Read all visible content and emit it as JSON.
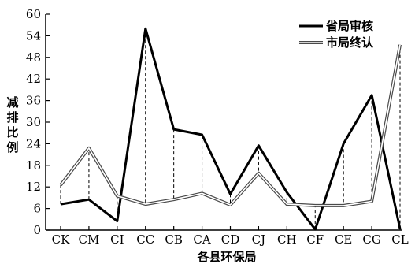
{
  "chart_data": {
    "type": "line",
    "title": "",
    "xlabel": "各县环保局",
    "ylabel": "减排比例",
    "categories": [
      "CK",
      "CM",
      "CI",
      "CC",
      "CB",
      "CA",
      "CD",
      "CJ",
      "CH",
      "CF",
      "CE",
      "CG",
      "CL"
    ],
    "yticks": [
      0,
      6,
      12,
      18,
      24,
      30,
      36,
      42,
      48,
      54,
      60
    ],
    "ylim": [
      0,
      60
    ],
    "legend_position": "top-right",
    "grid": false,
    "series": [
      {
        "name": "省局审核",
        "style": "thick-black",
        "color": "#000000",
        "values": [
          7.2,
          8.5,
          2.5,
          56.0,
          28.0,
          26.5,
          10.0,
          23.5,
          10.5,
          0.2,
          24.0,
          37.5,
          0.3
        ]
      },
      {
        "name": "市局终认",
        "style": "double-line",
        "color": "#555555",
        "values": [
          12.5,
          22.8,
          9.5,
          7.2,
          8.5,
          10.2,
          7.0,
          15.8,
          7.2,
          6.8,
          6.8,
          8.0,
          51.5
        ]
      }
    ]
  }
}
